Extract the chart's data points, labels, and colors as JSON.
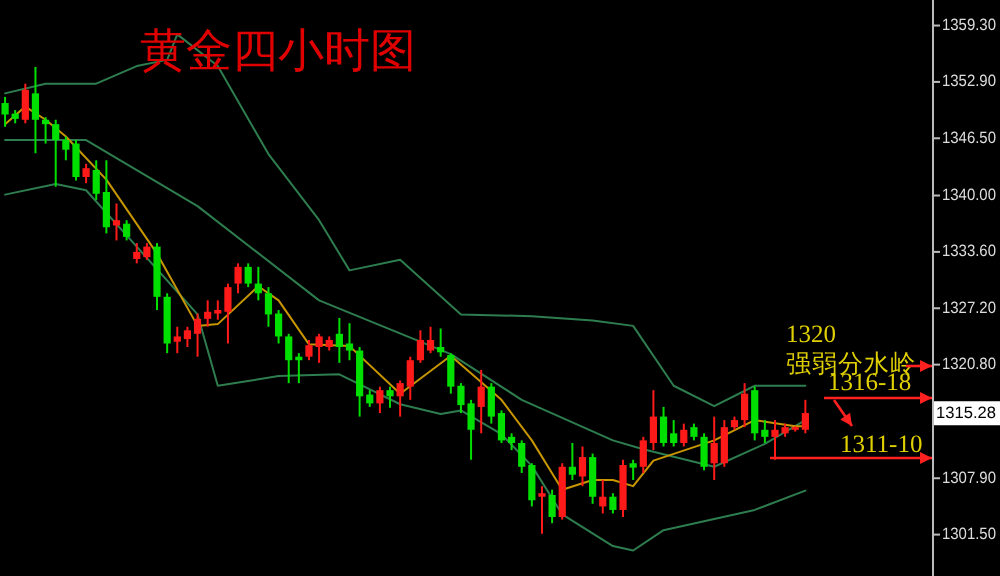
{
  "chart_data": {
    "type": "candlestick",
    "title": "黄金四小时图",
    "categories": [
      null,
      null,
      null,
      null,
      null,
      null,
      null,
      null,
      null,
      null,
      null,
      null,
      null,
      null,
      null,
      null,
      null,
      null,
      null,
      null,
      null,
      null,
      null,
      null,
      null,
      null,
      null,
      null,
      null,
      null,
      null,
      null,
      null,
      null,
      null,
      null,
      null,
      null,
      null,
      null,
      null,
      null,
      null,
      null,
      null,
      null,
      null,
      null,
      null,
      null,
      null,
      null,
      null,
      null,
      null,
      null,
      null,
      null,
      null,
      null,
      null,
      null,
      null,
      null,
      null,
      null,
      null,
      null,
      null,
      null,
      null,
      null,
      null,
      null,
      null,
      null,
      null,
      null,
      null,
      null,
      null,
      null,
      null,
      null,
      null,
      null,
      null,
      null,
      null,
      null,
      null,
      null
    ],
    "ohlc": [
      [
        1350.5,
        1351.2,
        1347.8,
        1349.2
      ],
      [
        1349.3,
        1349.7,
        1348.2,
        1348.7
      ],
      [
        1348.6,
        1352.7,
        1348.2,
        1352.0
      ],
      [
        1351.6,
        1354.6,
        1344.8,
        1348.6
      ],
      [
        1348.6,
        1348.9,
        1345.9,
        1348.1
      ],
      [
        1348.1,
        1348.6,
        1341.0,
        1346.3
      ],
      [
        1346.3,
        1346.7,
        1344.0,
        1345.2
      ],
      [
        1345.9,
        1346.3,
        1341.7,
        1342.1
      ],
      [
        1342.1,
        1343.6,
        1341.4,
        1343.1
      ],
      [
        1342.9,
        1344.0,
        1339.5,
        1340.2
      ],
      [
        1340.4,
        1344.0,
        1335.7,
        1336.4
      ],
      [
        1336.6,
        1339.1,
        1334.9,
        1337.2
      ],
      [
        1336.8,
        1337.2,
        1334.9,
        1335.3
      ],
      [
        1332.8,
        1334.6,
        1332.3,
        1333.6
      ],
      [
        1333.0,
        1334.6,
        1332.7,
        1334.2
      ],
      [
        1334.2,
        1334.6,
        1327.0,
        1328.5
      ],
      [
        1328.5,
        1328.9,
        1322.1,
        1323.2
      ],
      [
        1323.4,
        1325.1,
        1322.1,
        1324.0
      ],
      [
        1323.7,
        1325.1,
        1322.8,
        1324.7
      ],
      [
        1324.3,
        1326.6,
        1321.7,
        1326.0
      ],
      [
        1326.0,
        1328.1,
        1325.1,
        1326.8
      ],
      [
        1326.6,
        1328.1,
        1325.9,
        1327.0
      ],
      [
        1326.8,
        1330.0,
        1323.2,
        1329.6
      ],
      [
        1330.0,
        1332.3,
        1328.9,
        1331.9
      ],
      [
        1331.9,
        1332.3,
        1329.6,
        1330.0
      ],
      [
        1330.0,
        1331.9,
        1328.1,
        1328.9
      ],
      [
        1328.9,
        1329.6,
        1325.1,
        1326.5
      ],
      [
        1326.6,
        1327.0,
        1323.2,
        1324.0
      ],
      [
        1324.0,
        1324.3,
        1318.7,
        1321.3
      ],
      [
        1321.7,
        1322.1,
        1318.7,
        1321.3
      ],
      [
        1321.7,
        1323.6,
        1321.3,
        1323.0
      ],
      [
        1322.8,
        1324.3,
        1321.0,
        1324.0
      ],
      [
        1322.8,
        1324.0,
        1322.4,
        1323.6
      ],
      [
        1324.3,
        1326.1,
        1321.0,
        1322.8
      ],
      [
        1323.2,
        1325.5,
        1321.3,
        1322.4
      ],
      [
        1322.4,
        1322.8,
        1314.9,
        1317.2
      ],
      [
        1317.4,
        1317.9,
        1316.0,
        1316.4
      ],
      [
        1316.4,
        1318.3,
        1315.3,
        1317.9
      ],
      [
        1317.9,
        1318.3,
        1315.9,
        1317.2
      ],
      [
        1317.2,
        1319.0,
        1314.9,
        1318.7
      ],
      [
        1318.3,
        1321.7,
        1316.8,
        1321.3
      ],
      [
        1321.3,
        1324.7,
        1321.0,
        1323.6
      ],
      [
        1322.4,
        1325.1,
        1322.1,
        1323.6
      ],
      [
        1322.8,
        1324.9,
        1321.7,
        1322.2
      ],
      [
        1321.9,
        1322.1,
        1317.5,
        1318.3
      ],
      [
        1318.4,
        1318.7,
        1315.3,
        1316.2
      ],
      [
        1316.4,
        1316.8,
        1310.0,
        1313.4
      ],
      [
        1316.0,
        1320.2,
        1313.0,
        1318.3
      ],
      [
        1318.3,
        1318.7,
        1314.1,
        1314.9
      ],
      [
        1315.3,
        1315.6,
        1311.9,
        1312.2
      ],
      [
        1312.6,
        1313.0,
        1311.1,
        1311.9
      ],
      [
        1311.9,
        1312.2,
        1308.5,
        1309.2
      ],
      [
        1309.4,
        1309.6,
        1304.7,
        1305.4
      ],
      [
        1305.8,
        1307.0,
        1301.6,
        1306.2
      ],
      [
        1306.0,
        1306.6,
        1302.8,
        1303.5
      ],
      [
        1303.5,
        1309.6,
        1303.2,
        1309.2
      ],
      [
        1309.2,
        1311.9,
        1307.7,
        1308.3
      ],
      [
        1308.1,
        1311.5,
        1307.0,
        1310.3
      ],
      [
        1310.3,
        1310.7,
        1305.0,
        1305.8
      ],
      [
        1304.7,
        1307.7,
        1303.9,
        1305.8
      ],
      [
        1305.8,
        1306.2,
        1303.9,
        1304.3
      ],
      [
        1304.3,
        1310.0,
        1303.5,
        1309.4
      ],
      [
        1309.6,
        1310.0,
        1307.7,
        1309.1
      ],
      [
        1309.2,
        1312.6,
        1308.5,
        1312.2
      ],
      [
        1311.9,
        1317.9,
        1311.1,
        1314.9
      ],
      [
        1314.9,
        1316.0,
        1311.5,
        1311.9
      ],
      [
        1313.0,
        1314.5,
        1311.5,
        1311.9
      ],
      [
        1311.9,
        1314.1,
        1311.5,
        1313.4
      ],
      [
        1313.7,
        1314.1,
        1312.2,
        1312.6
      ],
      [
        1312.6,
        1313.0,
        1308.8,
        1309.2
      ],
      [
        1309.6,
        1314.9,
        1307.7,
        1311.9
      ],
      [
        1309.6,
        1314.5,
        1309.2,
        1313.7
      ],
      [
        1313.7,
        1314.9,
        1313.4,
        1314.5
      ],
      [
        1314.5,
        1318.7,
        1313.7,
        1317.5
      ],
      [
        1317.9,
        1318.3,
        1312.2,
        1313.0
      ],
      [
        1313.4,
        1314.5,
        1311.9,
        1312.6
      ],
      [
        1312.6,
        1314.5,
        1310.0,
        1313.4
      ],
      [
        1313.0,
        1314.1,
        1312.6,
        1313.7
      ],
      [
        1313.4,
        1313.8,
        1313.2,
        1313.7
      ],
      [
        1313.4,
        1316.8,
        1313.0,
        1315.3
      ],
      null,
      null,
      null,
      null,
      null,
      null,
      null,
      null,
      null,
      null,
      null,
      null
    ],
    "series": [
      {
        "type": "line",
        "color": "#2e7d4f",
        "values": [
          1351.6,
          null,
          null,
          null,
          1352.7,
          null,
          null,
          null,
          null,
          1352.7,
          null,
          null,
          null,
          1354.7,
          null,
          null,
          1355.4,
          1358.3,
          null,
          null,
          null,
          1354.7,
          null,
          null,
          null,
          null,
          1344.7,
          null,
          null,
          null,
          null,
          1337.2,
          null,
          null,
          1331.5,
          null,
          null,
          null,
          null,
          1332.7,
          null,
          null,
          null,
          null,
          null,
          1326.5,
          null,
          null,
          null,
          null,
          null,
          null,
          1326.3,
          null,
          null,
          null,
          null,
          null,
          1325.8,
          null,
          null,
          null,
          1325.2,
          null,
          null,
          null,
          1318.4,
          null,
          null,
          null,
          1316.1,
          null,
          null,
          null,
          1318.4,
          null,
          null,
          null,
          null,
          1318.4,
          null,
          null,
          null,
          null,
          null,
          null,
          null,
          null,
          null,
          null,
          null,
          null
        ]
      },
      {
        "type": "line",
        "color": "#2e7d4f",
        "values": [
          1346.3,
          null,
          null,
          null,
          null,
          null,
          null,
          null,
          1346.3,
          null,
          null,
          null,
          null,
          null,
          null,
          null,
          null,
          null,
          null,
          1338.8,
          null,
          null,
          null,
          null,
          null,
          null,
          null,
          null,
          null,
          null,
          null,
          1328.1,
          null,
          null,
          null,
          null,
          null,
          null,
          null,
          null,
          null,
          null,
          null,
          null,
          1322.0,
          null,
          null,
          null,
          null,
          null,
          null,
          1316.8,
          null,
          null,
          null,
          null,
          null,
          null,
          null,
          null,
          1312.2,
          null,
          null,
          1311.2,
          null,
          null,
          null,
          null,
          null,
          null,
          1309.2,
          null,
          null,
          null,
          null,
          1311.8,
          null,
          null,
          null,
          1314.5,
          null,
          null,
          null,
          null,
          null,
          null,
          null,
          null,
          null,
          null,
          null,
          null
        ]
      },
      {
        "type": "line",
        "color": "#2e7d4f",
        "values": [
          1340.1,
          null,
          null,
          null,
          null,
          1341.3,
          null,
          null,
          1340.6,
          null,
          null,
          null,
          null,
          null,
          null,
          null,
          null,
          null,
          null,
          1326.5,
          null,
          1318.4,
          null,
          null,
          null,
          null,
          null,
          1319.5,
          null,
          null,
          null,
          null,
          null,
          1319.7,
          null,
          null,
          null,
          null,
          null,
          1316.3,
          null,
          null,
          null,
          1315.2,
          null,
          1315.6,
          null,
          null,
          null,
          1312.9,
          null,
          null,
          1309.3,
          null,
          null,
          1303.8,
          null,
          null,
          null,
          null,
          1300.2,
          null,
          1299.7,
          null,
          null,
          1302.0,
          null,
          null,
          null,
          null,
          null,
          null,
          null,
          null,
          1304.3,
          null,
          null,
          null,
          null,
          1306.5,
          null,
          null,
          null,
          null,
          null,
          null,
          null,
          null,
          null,
          null,
          null,
          null
        ]
      },
      {
        "type": "line",
        "color": "#c89600",
        "values": [
          1348.1,
          null,
          1350.1,
          null,
          1348.6,
          null,
          1346.7,
          null,
          null,
          null,
          1341.8,
          null,
          null,
          null,
          null,
          1333.4,
          null,
          null,
          null,
          1325.2,
          null,
          1325.4,
          null,
          null,
          null,
          1329.7,
          null,
          1328.1,
          null,
          null,
          1323.1,
          null,
          null,
          null,
          1322.9,
          null,
          null,
          null,
          null,
          1317.5,
          null,
          null,
          null,
          null,
          1321.8,
          null,
          null,
          null,
          null,
          1316.8,
          null,
          null,
          1312.2,
          null,
          null,
          1306.6,
          null,
          null,
          1307.7,
          null,
          1307.7,
          null,
          1307.0,
          null,
          1309.9,
          null,
          null,
          null,
          null,
          null,
          1312.2,
          null,
          null,
          null,
          1314.5,
          null,
          null,
          null,
          1313.8,
          1313.8,
          null,
          null,
          null,
          null,
          null,
          null,
          null,
          null,
          null,
          null,
          null,
          null
        ]
      }
    ],
    "ylim": [
      1296.8,
      1362.2
    ],
    "yticks": [
      {
        "value": 1359.3,
        "label": "1359.30"
      },
      {
        "value": 1352.9,
        "label": "1352.90"
      },
      {
        "value": 1346.5,
        "label": "1346.50"
      },
      {
        "value": 1340.0,
        "label": "1340.00"
      },
      {
        "value": 1333.6,
        "label": "1333.60"
      },
      {
        "value": 1327.2,
        "label": "1327.20"
      },
      {
        "value": 1320.8,
        "label": "1320.80"
      },
      {
        "value": 1314.4,
        "label": null
      },
      {
        "value": 1307.9,
        "label": "1307.90"
      },
      {
        "value": 1301.5,
        "label": "1301.50"
      }
    ],
    "tick_labels": "y",
    "annotations": [
      "1320",
      "强弱分水岭",
      "1316-18",
      "1311-10",
      {
        "text": "1315.28",
        "y": 1315.28
      }
    ]
  }
}
